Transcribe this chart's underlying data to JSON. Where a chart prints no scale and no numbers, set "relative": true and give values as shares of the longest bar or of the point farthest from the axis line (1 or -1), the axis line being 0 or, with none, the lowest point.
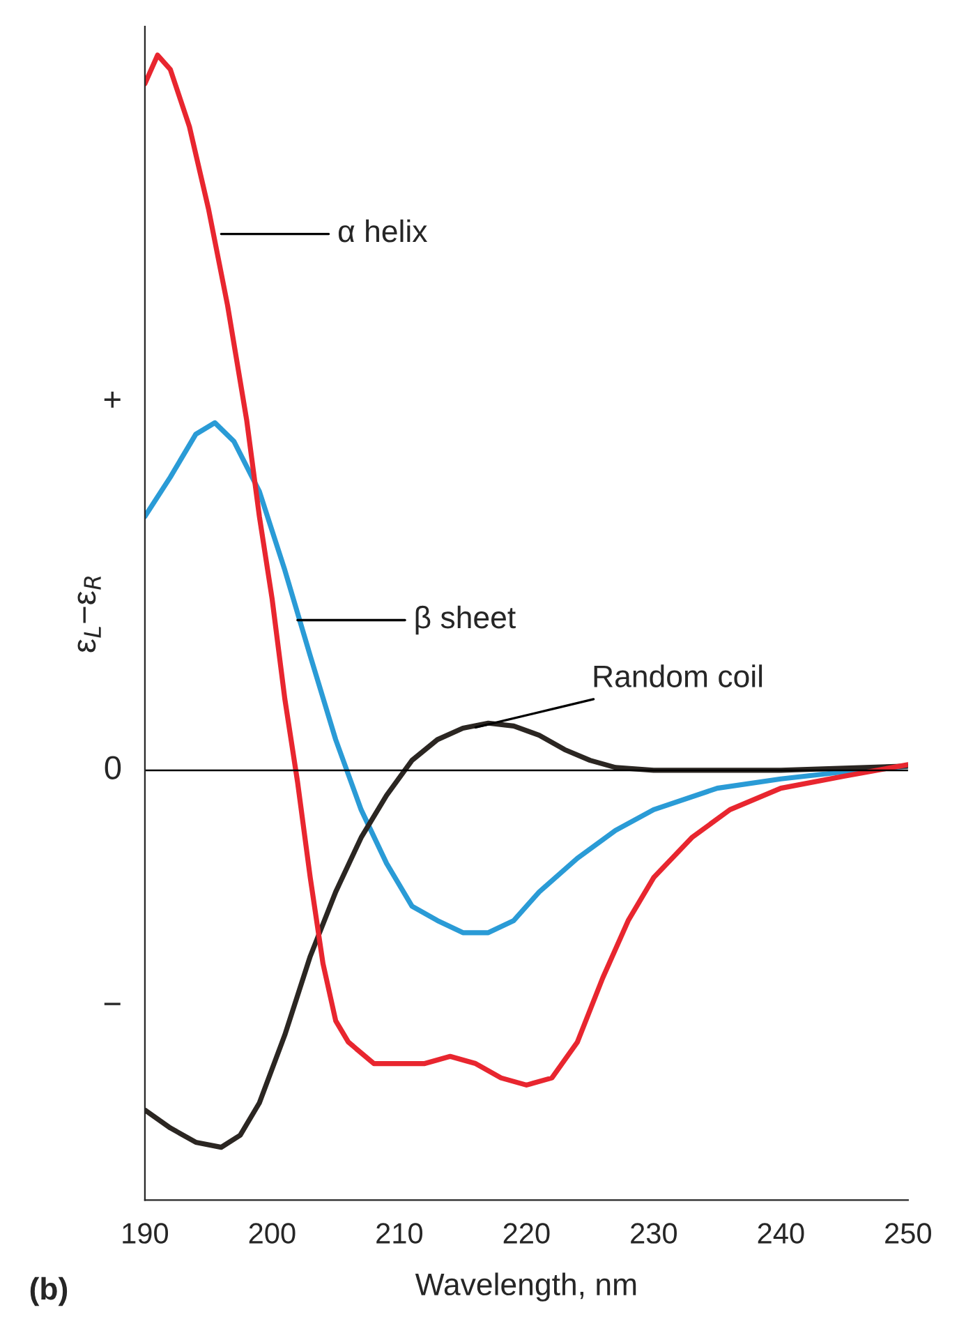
{
  "chart_data": {
    "type": "line",
    "relative": true,
    "xlabel": "Wavelength, nm",
    "ylabel": "ε$_{L}$−ε$_{R}$",
    "xlim": [
      190,
      250
    ],
    "xticks": [
      190,
      200,
      210,
      220,
      230,
      240,
      250
    ],
    "grid": false,
    "legend": false,
    "marker": "none",
    "line_style": "solid",
    "series": [
      {
        "color": "#2a9bd6",
        "x": [
          190,
          192,
          194,
          195.5,
          197,
          199,
          201,
          203,
          205,
          207,
          209,
          211,
          213,
          215,
          217,
          219,
          221,
          224,
          227,
          230,
          235,
          240,
          245,
          250
        ],
        "values": [
          0.355,
          0.41,
          0.47,
          0.486,
          0.46,
          0.39,
          0.28,
          0.16,
          0.043,
          -0.055,
          -0.13,
          -0.19,
          -0.21,
          -0.227,
          -0.227,
          -0.21,
          -0.17,
          -0.123,
          -0.084,
          -0.055,
          -0.025,
          -0.012,
          -0.002,
          0.006
        ]
      },
      {
        "color": "#2b2622",
        "x": [
          190,
          192,
          194,
          196,
          197.5,
          199,
          201,
          203,
          205,
          207,
          209,
          211,
          213,
          215,
          217,
          219,
          221,
          223,
          225,
          227,
          230,
          240,
          250
        ],
        "values": [
          -0.475,
          -0.5,
          -0.52,
          -0.527,
          -0.51,
          -0.465,
          -0.37,
          -0.26,
          -0.17,
          -0.094,
          -0.035,
          0.014,
          0.043,
          0.059,
          0.066,
          0.062,
          0.049,
          0.029,
          0.014,
          0.004,
          0,
          0,
          0.006
        ]
      },
      {
        "color": "#e8262f",
        "x": [
          190,
          191,
          192,
          193.5,
          195,
          196.5,
          198,
          199,
          200,
          201,
          202,
          203,
          204,
          205,
          206,
          208,
          210,
          212,
          214,
          216,
          218,
          220,
          222,
          224,
          226,
          228,
          230,
          233,
          236,
          240,
          245,
          250
        ],
        "values": [
          0.96,
          1,
          0.98,
          0.9,
          0.785,
          0.65,
          0.49,
          0.355,
          0.24,
          0.1,
          -0.016,
          -0.15,
          -0.27,
          -0.35,
          -0.38,
          -0.41,
          -0.41,
          -0.41,
          -0.4,
          -0.41,
          -0.43,
          -0.44,
          -0.43,
          -0.38,
          -0.29,
          -0.21,
          -0.15,
          -0.094,
          -0.055,
          -0.025,
          -0.008,
          0.008
        ]
      }
    ],
    "annotations": [
      {
        "text": "α helix",
        "x": 196,
        "y": 0.75
      },
      {
        "text": "β sheet",
        "x": 202,
        "y": 0.21
      },
      {
        "text": "Random coil",
        "x": 216,
        "y": 0.06
      },
      "+",
      "0",
      "−",
      "(b)"
    ]
  }
}
